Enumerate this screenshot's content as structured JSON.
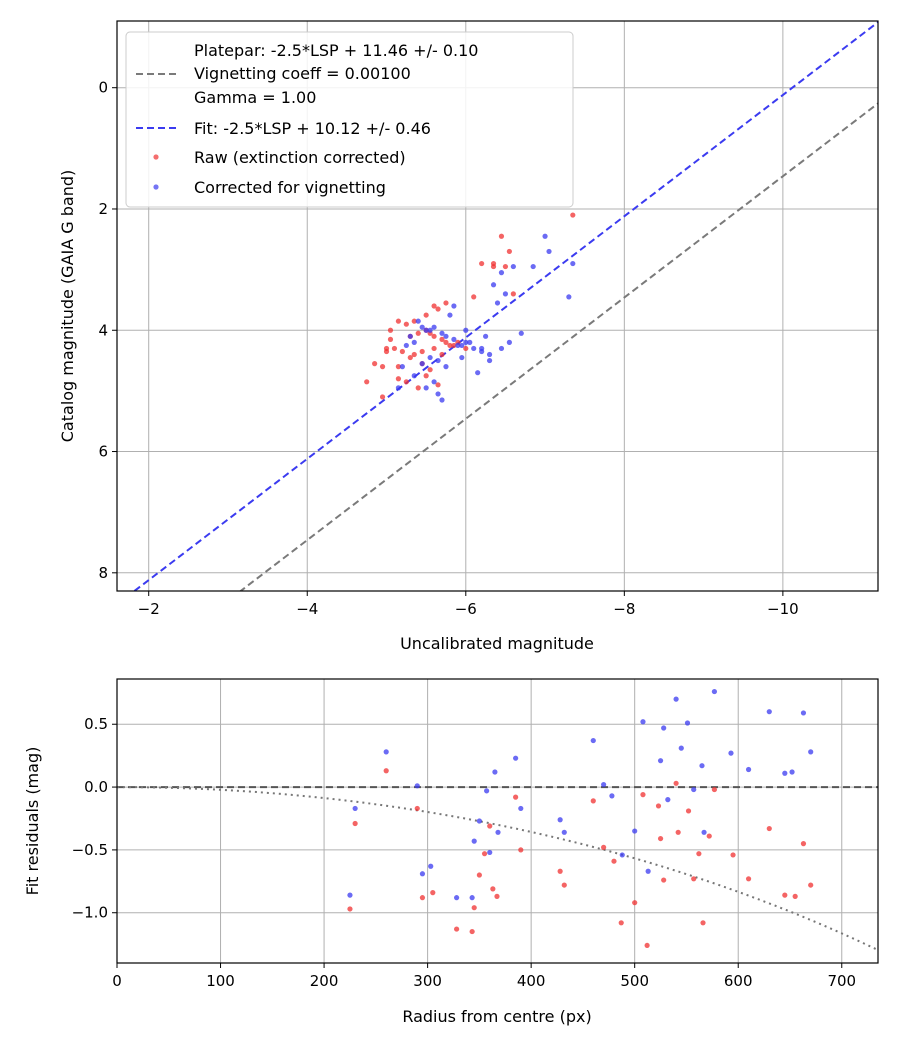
{
  "chart_data": [
    {
      "type": "scatter",
      "xlabel": "Uncalibrated magnitude",
      "ylabel": "Catalog magnitude (GAIA G band)",
      "xlim": [
        -1.6,
        -11.2
      ],
      "ylim": [
        8.3,
        -1.1
      ],
      "x_ticks": [
        -2,
        -4,
        -6,
        -8,
        -10
      ],
      "x_tick_labels": [
        "−2",
        "−4",
        "−6",
        "−8",
        "−10"
      ],
      "y_ticks": [
        0,
        2,
        4,
        6,
        8
      ],
      "y_tick_labels": [
        "0",
        "2",
        "4",
        "6",
        "8"
      ],
      "grid": true,
      "legend_position": "top-left",
      "legend": [
        {
          "label": "Platepar: -2.5*LSP + 11.46 +/- 0.10",
          "kind": "blank"
        },
        {
          "label": "Vignetting coeff = 0.00100",
          "kind": "dash",
          "color": "#7a7a7a"
        },
        {
          "label": "Gamma = 1.00",
          "kind": "blank"
        },
        {
          "label": "Fit: -2.5*LSP + 10.12 +/- 0.46",
          "kind": "dash",
          "color": "#3b3bf0"
        },
        {
          "label": "Raw (extinction corrected)",
          "kind": "dot",
          "color": "#f03030"
        },
        {
          "label": "Corrected for vignetting",
          "kind": "dot",
          "color": "#3a3af0"
        }
      ],
      "lines": [
        {
          "name": "Platepar",
          "slope": 1,
          "intercept": 11.46,
          "color": "#7a7a7a",
          "style": "dashed"
        },
        {
          "name": "Fit",
          "slope": 1,
          "intercept": 10.12,
          "color": "#3b3bf0",
          "style": "dashed"
        }
      ],
      "series": [
        {
          "name": "Raw (extinction corrected)",
          "color": "#f03030",
          "x": [
            -7.35,
            -6.45,
            -6.35,
            -6.5,
            -6.35,
            -6.55,
            -6.2,
            -6.1,
            -6.6,
            -5.75,
            -5.6,
            -5.65,
            -5.5,
            -5.35,
            -5.25,
            -5.15,
            -5.05,
            -5.55,
            -5.5,
            -5.4,
            -5.3,
            -5.6,
            -5.7,
            -5.75,
            -5.05,
            -5.0,
            -5.1,
            -5.2,
            -5.6,
            -5.8,
            -5.45,
            -5.35,
            -5.0,
            -5.3,
            -5.7,
            -4.75,
            -5.25,
            -5.15,
            -4.85,
            -4.95,
            -5.45,
            -5.55,
            -5.65,
            -5.15,
            -5.5,
            -5.9,
            -5.85,
            -6.0,
            -4.95,
            -5.4
          ],
          "y": [
            2.1,
            2.45,
            2.9,
            2.95,
            2.95,
            2.7,
            2.9,
            3.45,
            3.4,
            3.55,
            3.6,
            3.65,
            3.75,
            3.85,
            3.9,
            3.85,
            4.0,
            4.05,
            4.0,
            4.05,
            4.1,
            4.1,
            4.15,
            4.2,
            4.15,
            4.3,
            4.3,
            4.35,
            4.3,
            4.25,
            4.35,
            4.4,
            4.35,
            4.45,
            4.4,
            4.85,
            4.85,
            4.8,
            4.55,
            4.6,
            4.55,
            4.65,
            4.9,
            4.6,
            4.75,
            4.2,
            4.25,
            4.3,
            5.1,
            4.95
          ]
        },
        {
          "name": "Corrected for vignetting",
          "color": "#3a3af0",
          "x": [
            -7.35,
            -7.0,
            -7.3,
            -7.05,
            -6.85,
            -6.6,
            -6.45,
            -6.35,
            -6.5,
            -6.4,
            -6.7,
            -6.55,
            -6.25,
            -6.3,
            -6.2,
            -6.1,
            -6.0,
            -5.95,
            -5.85,
            -5.75,
            -5.7,
            -5.6,
            -5.55,
            -5.5,
            -5.4,
            -5.45,
            -5.3,
            -5.35,
            -5.25,
            -5.2,
            -5.15,
            -5.45,
            -5.55,
            -5.65,
            -5.8,
            -5.85,
            -6.0,
            -6.15,
            -6.3,
            -6.05,
            -6.45,
            -6.2,
            -5.95,
            -5.75,
            -5.6,
            -5.5,
            -5.35,
            -5.7,
            -5.65,
            -5.9
          ],
          "y": [
            2.9,
            2.45,
            3.45,
            2.7,
            2.95,
            2.95,
            3.05,
            3.25,
            3.4,
            3.55,
            4.05,
            4.2,
            4.1,
            4.4,
            4.3,
            4.3,
            4.2,
            4.25,
            4.15,
            4.1,
            4.05,
            3.95,
            4.0,
            4.0,
            3.85,
            3.95,
            4.1,
            4.2,
            4.25,
            4.6,
            4.95,
            4.55,
            4.45,
            4.5,
            3.75,
            3.6,
            4.0,
            4.7,
            4.5,
            4.2,
            4.3,
            4.35,
            4.45,
            4.6,
            4.85,
            4.95,
            4.75,
            5.15,
            5.05,
            4.25
          ]
        }
      ]
    },
    {
      "type": "scatter",
      "xlabel": "Radius from centre (px)",
      "ylabel": "Fit residuals (mag)",
      "xlim": [
        0,
        735
      ],
      "ylim": [
        -1.4,
        0.86
      ],
      "x_ticks": [
        0,
        100,
        200,
        300,
        400,
        500,
        600,
        700
      ],
      "x_tick_labels": [
        "0",
        "100",
        "200",
        "300",
        "400",
        "500",
        "600",
        "700"
      ],
      "y_ticks": [
        0.5,
        0.0,
        -0.5,
        -1.0
      ],
      "y_tick_labels": [
        "0.5",
        "0.0",
        "−0.5",
        "−1.0"
      ],
      "grid": true,
      "reference_lines": [
        {
          "name": "zero",
          "y": 0.0,
          "color": "#555555",
          "style": "dashed"
        },
        {
          "name": "Vignetting model",
          "coeff": 0.001,
          "color": "#777777",
          "style": "dotted"
        }
      ],
      "series": [
        {
          "name": "Raw (extinction corrected)",
          "color": "#f03030",
          "x": [
            225,
            230,
            260,
            290,
            295,
            305,
            328,
            343,
            345,
            350,
            355,
            360,
            363,
            367,
            385,
            390,
            428,
            432,
            460,
            470,
            480,
            487,
            500,
            508,
            512,
            523,
            525,
            528,
            540,
            542,
            552,
            557,
            562,
            566,
            572,
            577,
            595,
            610,
            630,
            645,
            655,
            663,
            670
          ],
          "y": [
            -0.97,
            -0.29,
            0.13,
            -0.17,
            -0.88,
            -0.84,
            -1.13,
            -1.15,
            -0.96,
            -0.7,
            -0.53,
            -0.31,
            -0.81,
            -0.87,
            -0.08,
            -0.5,
            -0.67,
            -0.78,
            -0.11,
            -0.48,
            -0.59,
            -1.08,
            -0.92,
            -0.06,
            -1.26,
            -0.15,
            -0.41,
            -0.74,
            0.03,
            -0.36,
            -0.19,
            -0.73,
            -0.53,
            -1.08,
            -0.39,
            -0.02,
            -0.54,
            -0.73,
            -0.33,
            -0.86,
            -0.87,
            -0.45,
            -0.78
          ]
        },
        {
          "name": "Corrected for vignetting",
          "color": "#3a3af0",
          "x": [
            225,
            230,
            260,
            290,
            295,
            303,
            328,
            343,
            345,
            350,
            357,
            360,
            365,
            368,
            385,
            390,
            428,
            432,
            460,
            470,
            478,
            488,
            500,
            508,
            513,
            525,
            528,
            532,
            540,
            545,
            551,
            557,
            565,
            567,
            577,
            593,
            610,
            630,
            645,
            652,
            663,
            670
          ],
          "y": [
            -0.86,
            -0.17,
            0.28,
            0.01,
            -0.69,
            -0.63,
            -0.88,
            -0.88,
            -0.43,
            -0.27,
            -0.03,
            -0.52,
            0.12,
            -0.36,
            0.23,
            -0.17,
            -0.26,
            -0.36,
            0.37,
            0.02,
            -0.07,
            -0.54,
            -0.35,
            0.52,
            -0.67,
            0.21,
            0.47,
            -0.1,
            0.7,
            0.31,
            0.51,
            -0.02,
            0.17,
            -0.36,
            0.76,
            0.27,
            0.14,
            0.6,
            0.11,
            0.12,
            0.59,
            0.28
          ]
        }
      ]
    }
  ]
}
